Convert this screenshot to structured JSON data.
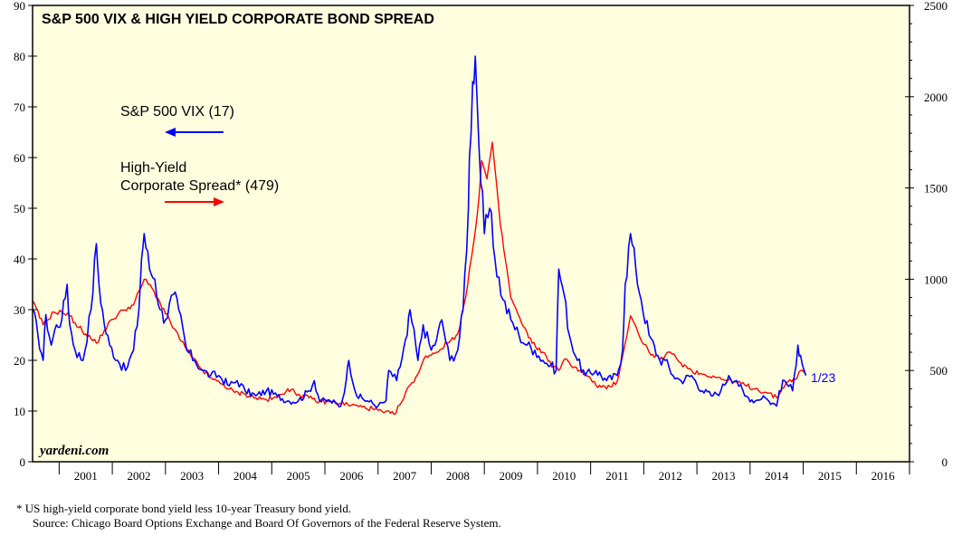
{
  "chart_data": {
    "type": "line",
    "title": "S&P 500 VIX & HIGH YIELD CORPORATE BOND SPREAD",
    "watermark": "yardeni.com",
    "end_label": "1/23",
    "colors": {
      "plot_background": "#FFFFE0",
      "vix": "#0000FF",
      "spread": "#FF0000"
    },
    "left_axis": {
      "min": 0,
      "max": 90,
      "ticks": [
        0,
        10,
        20,
        30,
        40,
        50,
        60,
        70,
        80,
        90
      ]
    },
    "right_axis": {
      "min": 0,
      "max": 2500,
      "ticks": [
        0,
        500,
        1000,
        1500,
        2000,
        2500
      ]
    },
    "x_axis": {
      "start": 2000.5,
      "end": 2017.0,
      "labels": [
        "2001",
        "2002",
        "2003",
        "2004",
        "2005",
        "2006",
        "2007",
        "2008",
        "2009",
        "2010",
        "2011",
        "2012",
        "2013",
        "2014",
        "2015",
        "2016"
      ]
    },
    "legend": [
      {
        "label": "S&P 500 VIX (17)",
        "lines": [
          "S&P 500 VIX (17)"
        ],
        "color": "#0000FF",
        "arrow": "left",
        "axis": "left"
      },
      {
        "label": "High-Yield Corporate Spread* (479)",
        "lines": [
          "High-Yield",
          "Corporate Spread* (479)"
        ],
        "color": "#FF0000",
        "arrow": "right",
        "axis": "right"
      }
    ],
    "series": [
      {
        "name": "S&P 500 VIX",
        "axis": "left",
        "x": [
          2000.5,
          2000.6,
          2000.7,
          2000.75,
          2000.85,
          2000.95,
          2001.05,
          2001.15,
          2001.2,
          2001.3,
          2001.45,
          2001.6,
          2001.7,
          2001.75,
          2001.85,
          2001.95,
          2002.1,
          2002.25,
          2002.4,
          2002.5,
          2002.55,
          2002.6,
          2002.7,
          2002.8,
          2002.9,
          2003.0,
          2003.15,
          2003.25,
          2003.4,
          2003.55,
          2003.7,
          2003.85,
          2004.0,
          2004.2,
          2004.35,
          2004.5,
          2004.7,
          2004.9,
          2005.1,
          2005.3,
          2005.5,
          2005.7,
          2005.8,
          2005.9,
          2006.1,
          2006.3,
          2006.4,
          2006.45,
          2006.6,
          2006.8,
          2007.0,
          2007.15,
          2007.2,
          2007.35,
          2007.55,
          2007.6,
          2007.75,
          2007.85,
          2008.0,
          2008.1,
          2008.2,
          2008.35,
          2008.5,
          2008.6,
          2008.7,
          2008.72,
          2008.78,
          2008.83,
          2008.9,
          2009.0,
          2009.1,
          2009.2,
          2009.35,
          2009.5,
          2009.65,
          2009.8,
          2009.95,
          2010.1,
          2010.25,
          2010.35,
          2010.4,
          2010.5,
          2010.6,
          2010.75,
          2010.9,
          2011.1,
          2011.3,
          2011.5,
          2011.6,
          2011.65,
          2011.75,
          2011.85,
          2011.95,
          2012.1,
          2012.3,
          2012.4,
          2012.55,
          2012.7,
          2012.9,
          2013.1,
          2013.3,
          2013.45,
          2013.6,
          2013.75,
          2013.9,
          2014.1,
          2014.25,
          2014.35,
          2014.5,
          2014.55,
          2014.65,
          2014.8,
          2014.9,
          2014.95,
          2015.05
        ],
        "y": [
          30,
          25,
          20,
          29,
          23,
          27,
          28,
          35,
          27,
          22,
          20,
          30,
          43,
          35,
          27,
          23,
          20,
          18,
          22,
          30,
          40,
          45,
          38,
          36,
          30,
          28,
          33,
          30,
          22,
          20,
          18,
          17,
          17,
          15,
          16,
          14,
          13,
          14,
          13,
          12,
          12,
          14,
          16,
          12,
          12,
          11,
          16,
          20,
          13,
          12,
          11,
          12,
          18,
          16,
          25,
          30,
          20,
          27,
          22,
          24,
          28,
          20,
          22,
          30,
          50,
          60,
          75,
          80,
          62,
          45,
          50,
          40,
          32,
          28,
          25,
          23,
          22,
          20,
          19,
          18,
          38,
          33,
          25,
          20,
          17,
          18,
          16,
          17,
          22,
          35,
          45,
          38,
          32,
          25,
          20,
          20,
          17,
          16,
          17,
          14,
          13,
          14,
          17,
          16,
          13,
          12,
          13,
          12,
          11,
          14,
          16,
          14,
          23,
          21,
          17
        ]
      },
      {
        "name": "High-Yield Corporate Spread",
        "axis": "right",
        "x": [
          2000.5,
          2000.7,
          2000.9,
          2001.05,
          2001.2,
          2001.3,
          2001.5,
          2001.7,
          2001.85,
          2002.0,
          2002.2,
          2002.4,
          2002.6,
          2002.75,
          2002.9,
          2003.1,
          2003.3,
          2003.5,
          2003.7,
          2003.9,
          2004.1,
          2004.3,
          2004.5,
          2004.7,
          2004.9,
          2005.1,
          2005.3,
          2005.5,
          2005.7,
          2005.9,
          2006.1,
          2006.3,
          2006.5,
          2006.7,
          2006.9,
          2007.1,
          2007.3,
          2007.45,
          2007.6,
          2007.75,
          2007.9,
          2008.1,
          2008.3,
          2008.5,
          2008.65,
          2008.8,
          2008.9,
          2008.95,
          2009.05,
          2009.15,
          2009.3,
          2009.5,
          2009.7,
          2009.9,
          2010.1,
          2010.3,
          2010.4,
          2010.5,
          2010.7,
          2010.9,
          2011.1,
          2011.3,
          2011.5,
          2011.65,
          2011.75,
          2011.9,
          2012.1,
          2012.3,
          2012.5,
          2012.7,
          2012.9,
          2013.1,
          2013.3,
          2013.5,
          2013.7,
          2013.9,
          2014.1,
          2014.3,
          2014.5,
          2014.6,
          2014.75,
          2014.85,
          2014.95,
          2015.05
        ],
        "y": [
          880,
          750,
          820,
          820,
          800,
          760,
          700,
          650,
          720,
          780,
          830,
          860,
          1000,
          950,
          870,
          760,
          660,
          570,
          500,
          450,
          420,
          380,
          370,
          350,
          340,
          350,
          400,
          370,
          350,
          330,
          330,
          320,
          310,
          300,
          290,
          270,
          260,
          330,
          420,
          480,
          580,
          600,
          650,
          700,
          900,
          1200,
          1450,
          1650,
          1550,
          1750,
          1300,
          900,
          760,
          650,
          600,
          520,
          500,
          560,
          520,
          480,
          420,
          400,
          440,
          650,
          800,
          700,
          600,
          560,
          600,
          540,
          500,
          480,
          470,
          450,
          440,
          420,
          400,
          380,
          350,
          400,
          450,
          450,
          500,
          479
        ]
      }
    ]
  },
  "footnote": {
    "line1": "*  US high-yield corporate bond yield less 10-year Treasury bond yield.",
    "line2": "Source: Chicago Board Options Exchange and Board Of Governors of the Federal Reserve System."
  }
}
